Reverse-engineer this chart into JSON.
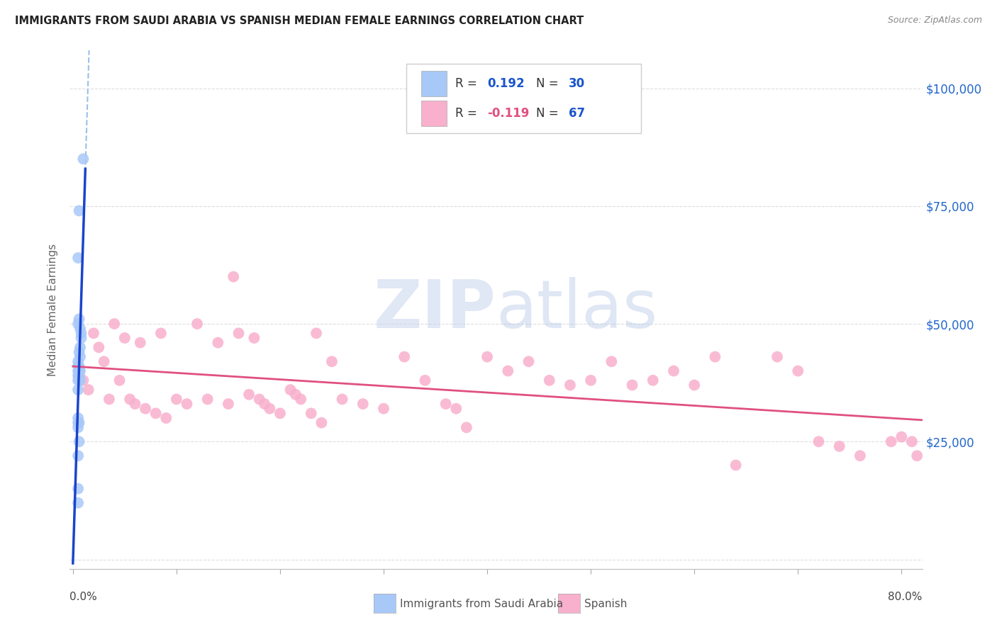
{
  "title": "IMMIGRANTS FROM SAUDI ARABIA VS SPANISH MEDIAN FEMALE EARNINGS CORRELATION CHART",
  "source": "Source: ZipAtlas.com",
  "ylabel": "Median Female Earnings",
  "y_ticks": [
    0,
    25000,
    50000,
    75000,
    100000
  ],
  "y_tick_labels_right": [
    "",
    "$25,000",
    "$50,000",
    "$75,000",
    "$100,000"
  ],
  "xlim": [
    -0.003,
    0.82
  ],
  "ylim": [
    -2000,
    108000
  ],
  "blue_scatter_color": "#a8c8f8",
  "pink_scatter_color": "#f8b0cc",
  "blue_line_color": "#1a44cc",
  "blue_dash_color": "#90b8e8",
  "pink_line_color": "#e05080",
  "r_blue_color": "#1a55cc",
  "r_pink_color": "#e05080",
  "n_color": "#1a55cc",
  "grid_color": "#dddddd",
  "watermark_color": "#ccd8f0",
  "source_color": "#888888",
  "title_color": "#222222",
  "axis_label_color": "#666666",
  "right_tick_color": "#2266cc",
  "blue_x": [
    0.01,
    0.006,
    0.005,
    0.006,
    0.005,
    0.007,
    0.008,
    0.008,
    0.007,
    0.006,
    0.007,
    0.005,
    0.005,
    0.006,
    0.007,
    0.006,
    0.005,
    0.005,
    0.006,
    0.005,
    0.007,
    0.005,
    0.005,
    0.005,
    0.006,
    0.005,
    0.006,
    0.005,
    0.005,
    0.005
  ],
  "blue_y": [
    85000,
    74000,
    64000,
    51000,
    50000,
    49000,
    48000,
    47000,
    45000,
    44000,
    43000,
    42000,
    41000,
    41000,
    40000,
    40000,
    40000,
    39000,
    39000,
    38000,
    38000,
    36000,
    30000,
    29000,
    25000,
    22000,
    29000,
    28000,
    15000,
    12000
  ],
  "pink_x": [
    0.01,
    0.015,
    0.02,
    0.025,
    0.03,
    0.035,
    0.04,
    0.045,
    0.05,
    0.055,
    0.06,
    0.065,
    0.07,
    0.08,
    0.085,
    0.09,
    0.1,
    0.11,
    0.12,
    0.13,
    0.14,
    0.15,
    0.155,
    0.16,
    0.17,
    0.175,
    0.18,
    0.185,
    0.19,
    0.2,
    0.21,
    0.215,
    0.22,
    0.23,
    0.235,
    0.24,
    0.25,
    0.26,
    0.28,
    0.3,
    0.32,
    0.34,
    0.36,
    0.37,
    0.38,
    0.4,
    0.42,
    0.44,
    0.46,
    0.48,
    0.5,
    0.52,
    0.54,
    0.56,
    0.58,
    0.6,
    0.62,
    0.64,
    0.68,
    0.7,
    0.72,
    0.74,
    0.76,
    0.79,
    0.8,
    0.81,
    0.815
  ],
  "pink_y": [
    38000,
    36000,
    48000,
    45000,
    42000,
    34000,
    50000,
    38000,
    47000,
    34000,
    33000,
    46000,
    32000,
    31000,
    48000,
    30000,
    34000,
    33000,
    50000,
    34000,
    46000,
    33000,
    60000,
    48000,
    35000,
    47000,
    34000,
    33000,
    32000,
    31000,
    36000,
    35000,
    34000,
    31000,
    48000,
    29000,
    42000,
    34000,
    33000,
    32000,
    43000,
    38000,
    33000,
    32000,
    28000,
    43000,
    40000,
    42000,
    38000,
    37000,
    38000,
    42000,
    37000,
    38000,
    40000,
    37000,
    43000,
    20000,
    43000,
    40000,
    25000,
    24000,
    22000,
    25000,
    26000,
    25000,
    22000
  ],
  "legend_r_blue_text": "R = ",
  "legend_r_blue_val": "0.192",
  "legend_n_blue_text": "  N = ",
  "legend_n_blue_val": "30",
  "legend_r_pink_text": "R = ",
  "legend_r_pink_val": "-0.119",
  "legend_n_pink_text": "  N = ",
  "legend_n_pink_val": "67",
  "legend_label_blue": "Immigrants from Saudi Arabia",
  "legend_label_pink": "Spanish",
  "xticks_major": [
    0.0,
    0.1,
    0.2,
    0.3,
    0.4,
    0.5,
    0.6,
    0.7,
    0.8
  ]
}
